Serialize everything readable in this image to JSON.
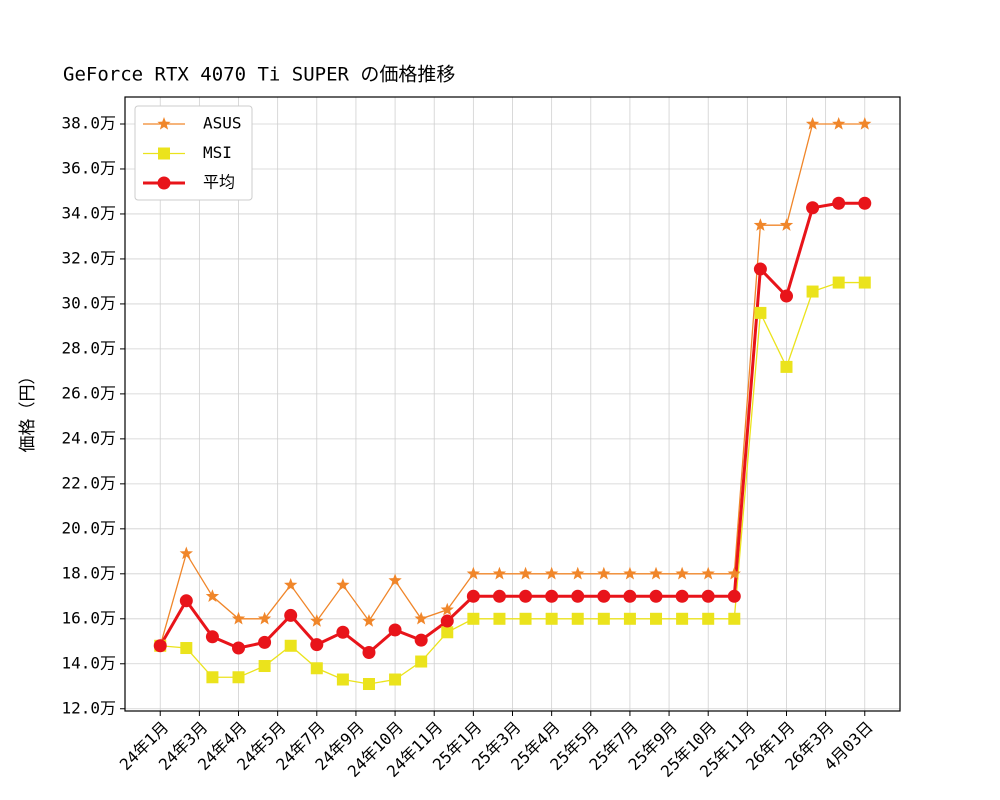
{
  "chart_data": {
    "type": "line",
    "title": "GeForce RTX 4070 Ti SUPER の価格推移",
    "y_label": "価格（円）",
    "x": [
      0,
      1,
      2,
      3,
      4,
      5,
      6,
      7,
      8,
      9,
      10,
      11,
      12,
      13,
      14,
      15,
      16,
      17,
      18,
      19,
      20,
      21,
      22,
      23,
      24,
      25,
      26,
      27
    ],
    "xlim": [
      -1.35,
      28.35
    ],
    "xticks": [
      {
        "value": 0,
        "label": "24年1月"
      },
      {
        "value": 1.5,
        "label": "24年3月"
      },
      {
        "value": 3,
        "label": "24年4月"
      },
      {
        "value": 4.5,
        "label": "24年5月"
      },
      {
        "value": 6,
        "label": "24年7月"
      },
      {
        "value": 7.5,
        "label": "24年9月"
      },
      {
        "value": 9,
        "label": "24年10月"
      },
      {
        "value": 10.5,
        "label": "24年11月"
      },
      {
        "value": 12,
        "label": "25年1月"
      },
      {
        "value": 13.5,
        "label": "25年3月"
      },
      {
        "value": 15,
        "label": "25年4月"
      },
      {
        "value": 16.5,
        "label": "25年5月"
      },
      {
        "value": 18,
        "label": "25年7月"
      },
      {
        "value": 19.5,
        "label": "25年9月"
      },
      {
        "value": 21,
        "label": "25年10月"
      },
      {
        "value": 22.5,
        "label": "25年11月"
      },
      {
        "value": 24,
        "label": "26年1月"
      },
      {
        "value": 25.5,
        "label": "26年3月"
      },
      {
        "value": 27,
        "label": "4月03日"
      }
    ],
    "ylim": [
      119000,
      392000
    ],
    "yticks": [
      {
        "value": 120000,
        "label": "12.0万"
      },
      {
        "value": 140000,
        "label": "14.0万"
      },
      {
        "value": 160000,
        "label": "16.0万"
      },
      {
        "value": 180000,
        "label": "18.0万"
      },
      {
        "value": 200000,
        "label": "20.0万"
      },
      {
        "value": 220000,
        "label": "22.0万"
      },
      {
        "value": 240000,
        "label": "24.0万"
      },
      {
        "value": 260000,
        "label": "26.0万"
      },
      {
        "value": 280000,
        "label": "28.0万"
      },
      {
        "value": 300000,
        "label": "30.0万"
      },
      {
        "value": 320000,
        "label": "32.0万"
      },
      {
        "value": 340000,
        "label": "34.0万"
      },
      {
        "value": 360000,
        "label": "36.0万"
      },
      {
        "value": 380000,
        "label": "38.0万"
      }
    ],
    "grid": true,
    "legend": "upper left",
    "series": [
      {
        "name": "ASUS",
        "color": "#f0862a",
        "marker": "star",
        "line_width": 1.3,
        "values": [
          148000,
          189000,
          170000,
          160000,
          160000,
          175000,
          159000,
          175000,
          159000,
          177000,
          160000,
          164000,
          180000,
          180000,
          180000,
          180000,
          180000,
          180000,
          180000,
          180000,
          180000,
          180000,
          180000,
          335000,
          335000,
          380000,
          380000,
          380000
        ]
      },
      {
        "name": "MSI",
        "color": "#ebe31c",
        "marker": "square",
        "line_width": 1.3,
        "values": [
          148000,
          147000,
          134000,
          134000,
          139000,
          148000,
          138000,
          133000,
          131000,
          133000,
          141000,
          154000,
          160000,
          160000,
          160000,
          160000,
          160000,
          160000,
          160000,
          160000,
          160000,
          160000,
          160000,
          296000,
          272000,
          305500,
          309500,
          309500
        ]
      },
      {
        "name": "平均",
        "color": "#e8141a",
        "marker": "circle",
        "line_width": 3,
        "values": [
          148000,
          168000,
          152000,
          147000,
          149500,
          161500,
          148500,
          154000,
          145000,
          155000,
          150500,
          159000,
          170000,
          170000,
          170000,
          170000,
          170000,
          170000,
          170000,
          170000,
          170000,
          170000,
          170000,
          315500,
          303500,
          342750,
          344750,
          344750
        ]
      }
    ]
  }
}
